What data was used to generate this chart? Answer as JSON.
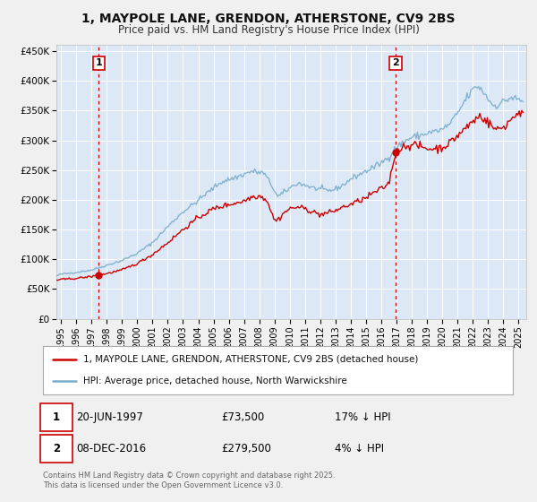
{
  "title": "1, MAYPOLE LANE, GRENDON, ATHERSTONE, CV9 2BS",
  "subtitle": "Price paid vs. HM Land Registry's House Price Index (HPI)",
  "ylim": [
    0,
    460000
  ],
  "xlim_start": 1994.7,
  "xlim_end": 2025.5,
  "yticks": [
    0,
    50000,
    100000,
    150000,
    200000,
    250000,
    300000,
    350000,
    400000,
    450000
  ],
  "ytick_labels": [
    "£0",
    "£50K",
    "£100K",
    "£150K",
    "£200K",
    "£250K",
    "£300K",
    "£350K",
    "£400K",
    "£450K"
  ],
  "xtick_years": [
    1995,
    1996,
    1997,
    1998,
    1999,
    2000,
    2001,
    2002,
    2003,
    2004,
    2005,
    2006,
    2007,
    2008,
    2009,
    2010,
    2011,
    2012,
    2013,
    2014,
    2015,
    2016,
    2017,
    2018,
    2019,
    2020,
    2021,
    2022,
    2023,
    2024,
    2025
  ],
  "sale1_date": 1997.47,
  "sale1_price": 73500,
  "sale1_label": "1",
  "sale1_text": "20-JUN-1997",
  "sale1_price_text": "£73,500",
  "sale1_hpi_text": "17% ↓ HPI",
  "sale2_date": 2016.93,
  "sale2_price": 279500,
  "sale2_label": "2",
  "sale2_text": "08-DEC-2016",
  "sale2_price_text": "£279,500",
  "sale2_hpi_text": "4% ↓ HPI",
  "red_color": "#cc0000",
  "blue_color": "#7aadcc",
  "bg_color": "#dce8f5",
  "grid_color": "#ffffff",
  "fig_bg": "#f0f0f0",
  "legend_label_red": "1, MAYPOLE LANE, GRENDON, ATHERSTONE, CV9 2BS (detached house)",
  "legend_label_blue": "HPI: Average price, detached house, North Warwickshire",
  "footer_text": "Contains HM Land Registry data © Crown copyright and database right 2025.\nThis data is licensed under the Open Government Licence v3.0."
}
